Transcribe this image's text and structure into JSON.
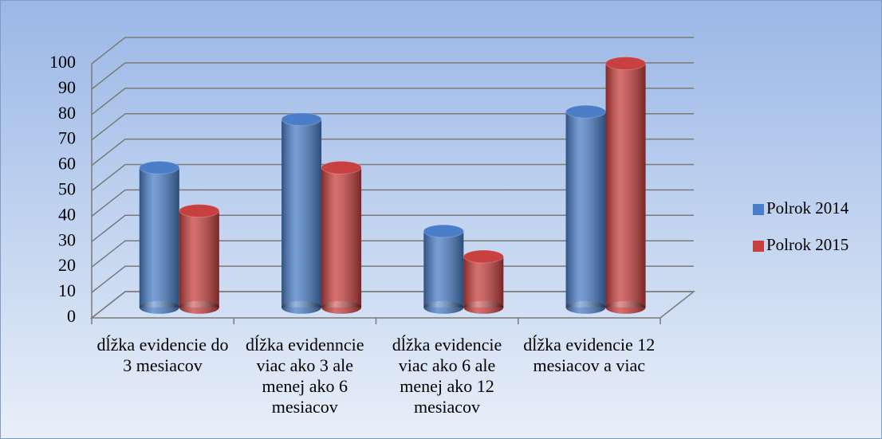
{
  "chart_data": {
    "type": "bar3d",
    "categories": [
      "dĺžka evidencie do 3 mesiacov",
      "dĺžka evidenncie viac ako 3 ale menej ako 6 mesiacov",
      "dĺžka evidencie viac ako 6 ale menej ako 12 mesiacov",
      "dĺžka evidencie 12 mesiacov a viac"
    ],
    "series": [
      {
        "name": "Polrok 2014",
        "color": "#4a7ec8",
        "values": [
          55,
          74,
          30,
          77
        ]
      },
      {
        "name": "Polrok 2015",
        "color": "#c8403f",
        "values": [
          38,
          55,
          20,
          96
        ]
      }
    ],
    "ylim": [
      0,
      100
    ],
    "yticks": [
      0,
      10,
      20,
      30,
      40,
      50,
      60,
      70,
      80,
      90,
      100
    ],
    "grid": true,
    "legend": "right"
  }
}
